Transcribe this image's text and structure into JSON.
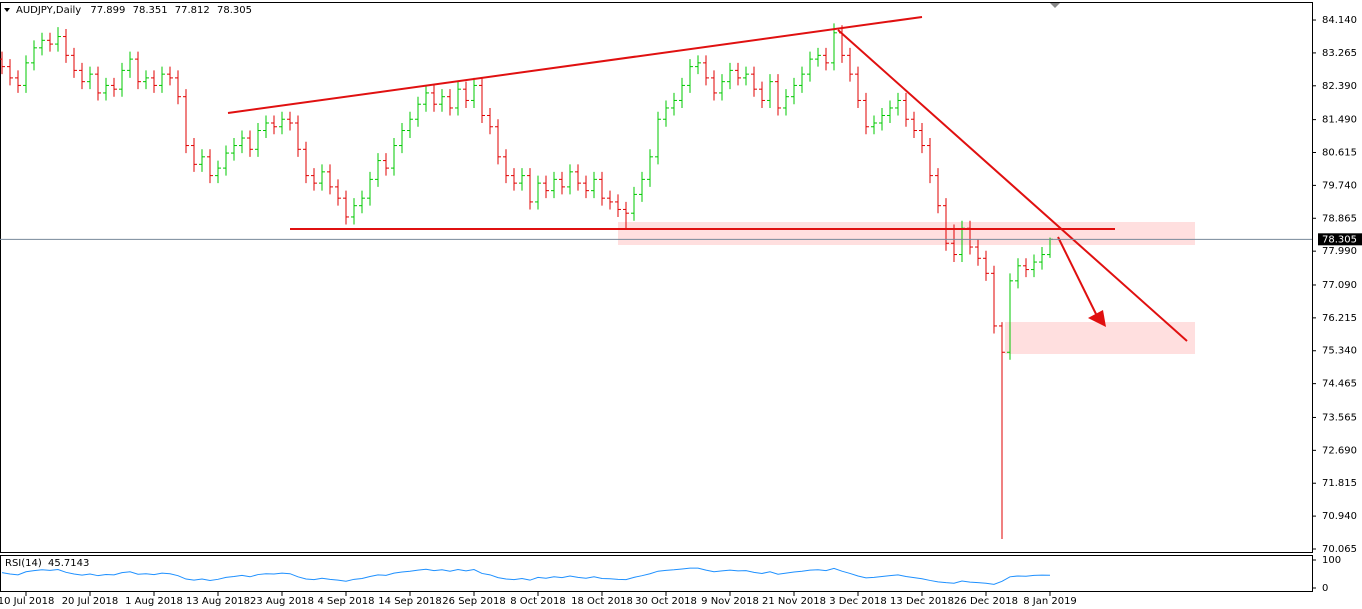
{
  "chart_data": {
    "type": "ohlc",
    "symbol": "AUDJPY,Daily",
    "ylim": [
      69.985,
      84.593
    ],
    "yticks": [
      {
        "value": 84.14,
        "label": "84.140"
      },
      {
        "value": 83.265,
        "label": "83.265"
      },
      {
        "value": 82.39,
        "label": "82.390"
      },
      {
        "value": 81.49,
        "label": "81.490"
      },
      {
        "value": 80.615,
        "label": "80.615"
      },
      {
        "value": 79.74,
        "label": "79.740"
      },
      {
        "value": 78.865,
        "label": "78.865"
      },
      {
        "value": 77.99,
        "label": "77.990"
      },
      {
        "value": 77.09,
        "label": "77.090"
      },
      {
        "value": 76.215,
        "label": "76.215"
      },
      {
        "value": 75.34,
        "label": "75.340"
      },
      {
        "value": 74.465,
        "label": "74.465"
      },
      {
        "value": 73.565,
        "label": "73.565"
      },
      {
        "value": 72.69,
        "label": "72.690"
      },
      {
        "value": 71.815,
        "label": "71.815"
      },
      {
        "value": 70.94,
        "label": "70.940"
      },
      {
        "value": 70.065,
        "label": "70.065"
      }
    ],
    "xticks": [
      {
        "value": 3,
        "label": "10 Jul 2018"
      },
      {
        "value": 11,
        "label": "20 Jul 2018"
      },
      {
        "value": 19,
        "label": "1 Aug 2018"
      },
      {
        "value": 27,
        "label": "13 Aug 2018"
      },
      {
        "value": 35,
        "label": "23 Aug 2018"
      },
      {
        "value": 43,
        "label": "4 Sep 2018"
      },
      {
        "value": 51,
        "label": "14 Sep 2018"
      },
      {
        "value": 59,
        "label": "26 Sep 2018"
      },
      {
        "value": 67,
        "label": "8 Oct 2018"
      },
      {
        "value": 75,
        "label": "18 Oct 2018"
      },
      {
        "value": 83,
        "label": "30 Oct 2018"
      },
      {
        "value": 91,
        "label": "9 Nov 2018"
      },
      {
        "value": 99,
        "label": "21 Nov 2018"
      },
      {
        "value": 107,
        "label": "3 Dec 2018"
      },
      {
        "value": 115,
        "label": "13 Dec 2018"
      },
      {
        "value": 123,
        "label": "26 Dec 2018"
      },
      {
        "value": 131,
        "label": "8 Jan 2019"
      }
    ],
    "up_color": "#00c800",
    "down_color": "#e00000",
    "bars": [
      [
        83.1,
        83.3,
        82.7,
        82.9
      ],
      [
        82.9,
        83.1,
        82.4,
        82.6
      ],
      [
        82.6,
        82.8,
        82.2,
        82.4
      ],
      [
        82.4,
        83.2,
        82.2,
        83.0
      ],
      [
        83.0,
        83.6,
        82.8,
        83.4
      ],
      [
        83.4,
        83.8,
        83.2,
        83.6
      ],
      [
        83.6,
        83.8,
        83.3,
        83.5
      ],
      [
        83.5,
        83.95,
        83.3,
        83.7
      ],
      [
        83.7,
        83.9,
        83.0,
        83.2
      ],
      [
        83.2,
        83.4,
        82.6,
        82.8
      ],
      [
        82.8,
        83.0,
        82.3,
        82.5
      ],
      [
        82.5,
        82.9,
        82.3,
        82.7
      ],
      [
        82.7,
        82.9,
        82.0,
        82.2
      ],
      [
        82.2,
        82.6,
        82.0,
        82.4
      ],
      [
        82.4,
        82.6,
        82.1,
        82.3
      ],
      [
        82.3,
        83.0,
        82.1,
        82.8
      ],
      [
        82.8,
        83.3,
        82.6,
        83.1
      ],
      [
        83.1,
        83.3,
        82.3,
        82.5
      ],
      [
        82.5,
        82.8,
        82.3,
        82.6
      ],
      [
        82.6,
        82.8,
        82.2,
        82.4
      ],
      [
        82.4,
        82.9,
        82.2,
        82.7
      ],
      [
        82.7,
        82.9,
        82.4,
        82.6
      ],
      [
        82.6,
        82.8,
        81.9,
        82.1
      ],
      [
        82.1,
        82.3,
        80.6,
        80.8
      ],
      [
        80.8,
        81.0,
        80.1,
        80.3
      ],
      [
        80.3,
        80.7,
        80.1,
        80.5
      ],
      [
        80.5,
        80.7,
        79.8,
        80.0
      ],
      [
        80.0,
        80.4,
        79.8,
        80.2
      ],
      [
        80.2,
        80.8,
        80.0,
        80.6
      ],
      [
        80.6,
        81.0,
        80.4,
        80.8
      ],
      [
        80.8,
        81.2,
        80.6,
        81.0
      ],
      [
        81.0,
        81.2,
        80.5,
        80.7
      ],
      [
        80.7,
        81.4,
        80.5,
        81.2
      ],
      [
        81.2,
        81.6,
        81.0,
        81.4
      ],
      [
        81.4,
        81.6,
        81.1,
        81.3
      ],
      [
        81.3,
        81.7,
        81.1,
        81.5
      ],
      [
        81.5,
        81.7,
        81.2,
        81.4
      ],
      [
        81.4,
        81.6,
        80.5,
        80.7
      ],
      [
        80.7,
        80.9,
        79.8,
        80.0
      ],
      [
        80.0,
        80.2,
        79.6,
        79.8
      ],
      [
        79.8,
        80.3,
        79.6,
        80.1
      ],
      [
        80.1,
        80.3,
        79.5,
        79.7
      ],
      [
        79.7,
        79.9,
        79.2,
        79.4
      ],
      [
        79.4,
        79.6,
        78.7,
        78.9
      ],
      [
        78.9,
        79.4,
        78.7,
        79.2
      ],
      [
        79.2,
        79.6,
        79.0,
        79.4
      ],
      [
        79.4,
        80.1,
        79.2,
        79.9
      ],
      [
        79.9,
        80.6,
        79.7,
        80.4
      ],
      [
        80.4,
        80.6,
        80.0,
        80.2
      ],
      [
        80.2,
        81.0,
        80.0,
        80.8
      ],
      [
        80.8,
        81.4,
        80.6,
        81.2
      ],
      [
        81.2,
        81.7,
        81.0,
        81.5
      ],
      [
        81.5,
        82.1,
        81.3,
        81.9
      ],
      [
        81.9,
        82.4,
        81.7,
        82.2
      ],
      [
        82.2,
        82.4,
        81.7,
        81.9
      ],
      [
        81.9,
        82.3,
        81.7,
        82.1
      ],
      [
        82.1,
        82.3,
        81.6,
        81.8
      ],
      [
        81.8,
        82.5,
        81.6,
        82.3
      ],
      [
        82.3,
        82.5,
        81.8,
        82.0
      ],
      [
        82.0,
        82.6,
        81.8,
        82.4
      ],
      [
        82.4,
        82.6,
        81.4,
        81.6
      ],
      [
        81.6,
        81.8,
        81.1,
        81.3
      ],
      [
        81.3,
        81.5,
        80.3,
        80.5
      ],
      [
        80.5,
        80.7,
        79.8,
        80.0
      ],
      [
        80.0,
        80.2,
        79.6,
        79.8
      ],
      [
        79.8,
        80.2,
        79.6,
        80.0
      ],
      [
        80.0,
        80.2,
        79.1,
        79.3
      ],
      [
        79.3,
        80.0,
        79.1,
        79.8
      ],
      [
        79.8,
        80.0,
        79.4,
        79.6
      ],
      [
        79.6,
        80.1,
        79.4,
        79.9
      ],
      [
        79.9,
        80.1,
        79.5,
        79.7
      ],
      [
        79.7,
        80.3,
        79.5,
        80.1
      ],
      [
        80.1,
        80.3,
        79.6,
        79.8
      ],
      [
        79.8,
        80.0,
        79.4,
        79.6
      ],
      [
        79.6,
        80.1,
        79.4,
        79.9
      ],
      [
        79.9,
        80.1,
        79.2,
        79.4
      ],
      [
        79.4,
        79.6,
        79.1,
        79.3
      ],
      [
        79.3,
        79.5,
        78.9,
        79.1
      ],
      [
        79.1,
        79.3,
        78.6,
        79.0
      ],
      [
        79.0,
        79.7,
        78.8,
        79.5
      ],
      [
        79.5,
        80.1,
        79.3,
        79.9
      ],
      [
        79.9,
        80.7,
        79.7,
        80.5
      ],
      [
        80.5,
        81.7,
        80.3,
        81.5
      ],
      [
        81.5,
        82.0,
        81.3,
        81.8
      ],
      [
        81.8,
        82.2,
        81.6,
        82.0
      ],
      [
        82.0,
        82.6,
        81.8,
        82.4
      ],
      [
        82.4,
        83.1,
        82.2,
        82.9
      ],
      [
        82.9,
        83.2,
        82.7,
        83.0
      ],
      [
        83.0,
        83.2,
        82.4,
        82.6
      ],
      [
        82.6,
        82.8,
        82.0,
        82.2
      ],
      [
        82.2,
        82.7,
        82.0,
        82.5
      ],
      [
        82.5,
        83.0,
        82.3,
        82.8
      ],
      [
        82.8,
        83.0,
        82.4,
        82.6
      ],
      [
        82.6,
        82.9,
        82.4,
        82.7
      ],
      [
        82.7,
        82.9,
        82.1,
        82.3
      ],
      [
        82.3,
        82.5,
        81.8,
        82.0
      ],
      [
        82.0,
        82.7,
        81.8,
        82.5
      ],
      [
        82.5,
        82.7,
        81.6,
        81.8
      ],
      [
        81.8,
        82.3,
        81.6,
        82.1
      ],
      [
        82.1,
        82.6,
        81.9,
        82.4
      ],
      [
        82.4,
        82.9,
        82.2,
        82.7
      ],
      [
        82.7,
        83.3,
        82.5,
        83.1
      ],
      [
        83.1,
        83.4,
        82.9,
        83.2
      ],
      [
        83.2,
        83.4,
        82.8,
        83.0
      ],
      [
        83.0,
        84.05,
        82.8,
        83.8
      ],
      [
        83.8,
        84.0,
        83.0,
        83.2
      ],
      [
        83.2,
        83.4,
        82.5,
        82.7
      ],
      [
        82.7,
        82.9,
        81.8,
        82.0
      ],
      [
        82.0,
        82.2,
        81.1,
        81.3
      ],
      [
        81.3,
        81.6,
        81.1,
        81.4
      ],
      [
        81.4,
        81.8,
        81.2,
        81.6
      ],
      [
        81.6,
        82.0,
        81.4,
        81.8
      ],
      [
        81.8,
        82.2,
        81.6,
        82.0
      ],
      [
        82.0,
        82.2,
        81.3,
        81.5
      ],
      [
        81.5,
        81.7,
        81.0,
        81.2
      ],
      [
        81.2,
        81.4,
        80.6,
        80.8
      ],
      [
        80.8,
        81.0,
        79.8,
        80.0
      ],
      [
        80.0,
        80.2,
        79.0,
        79.2
      ],
      [
        79.2,
        79.4,
        78.0,
        78.2
      ],
      [
        78.2,
        78.7,
        77.7,
        77.9
      ],
      [
        77.9,
        78.8,
        77.7,
        78.6
      ],
      [
        78.6,
        78.8,
        77.9,
        78.1
      ],
      [
        78.1,
        78.3,
        77.6,
        77.8
      ],
      [
        77.8,
        78.0,
        77.2,
        77.4
      ],
      [
        77.4,
        77.6,
        75.8,
        76.0
      ],
      [
        76.0,
        76.1,
        70.33,
        75.3
      ],
      [
        75.3,
        77.4,
        75.1,
        77.2
      ],
      [
        77.2,
        77.8,
        77.0,
        77.6
      ],
      [
        77.6,
        77.8,
        77.3,
        77.5
      ],
      [
        77.5,
        77.9,
        77.3,
        77.7
      ],
      [
        77.7,
        78.1,
        77.5,
        77.9
      ],
      [
        77.899,
        78.351,
        77.812,
        78.305
      ]
    ],
    "rsi": {
      "name": "RSI(14)",
      "color": "#1e90ff",
      "ylim": [
        0,
        100
      ],
      "yticks": [
        100,
        0
      ],
      "values": [
        55,
        50,
        47,
        58,
        62,
        65,
        63,
        66,
        56,
        50,
        46,
        50,
        44,
        48,
        47,
        55,
        58,
        49,
        51,
        48,
        53,
        51,
        44,
        32,
        28,
        32,
        27,
        31,
        38,
        41,
        45,
        40,
        48,
        51,
        50,
        53,
        51,
        40,
        32,
        30,
        35,
        31,
        28,
        24,
        31,
        34,
        41,
        47,
        45,
        53,
        57,
        60,
        64,
        67,
        62,
        65,
        60,
        66,
        61,
        66,
        52,
        47,
        37,
        32,
        30,
        34,
        28,
        38,
        35,
        40,
        37,
        43,
        38,
        35,
        40,
        34,
        33,
        31,
        30,
        38,
        44,
        51,
        60,
        63,
        65,
        68,
        71,
        71,
        64,
        58,
        61,
        64,
        61,
        62,
        56,
        52,
        58,
        49,
        53,
        57,
        60,
        64,
        65,
        62,
        70,
        60,
        52,
        43,
        36,
        38,
        41,
        44,
        47,
        41,
        37,
        33,
        27,
        22,
        19,
        17,
        25,
        21,
        19,
        17,
        13,
        24,
        40,
        43,
        42,
        45,
        46,
        45.7143
      ]
    }
  }
}
